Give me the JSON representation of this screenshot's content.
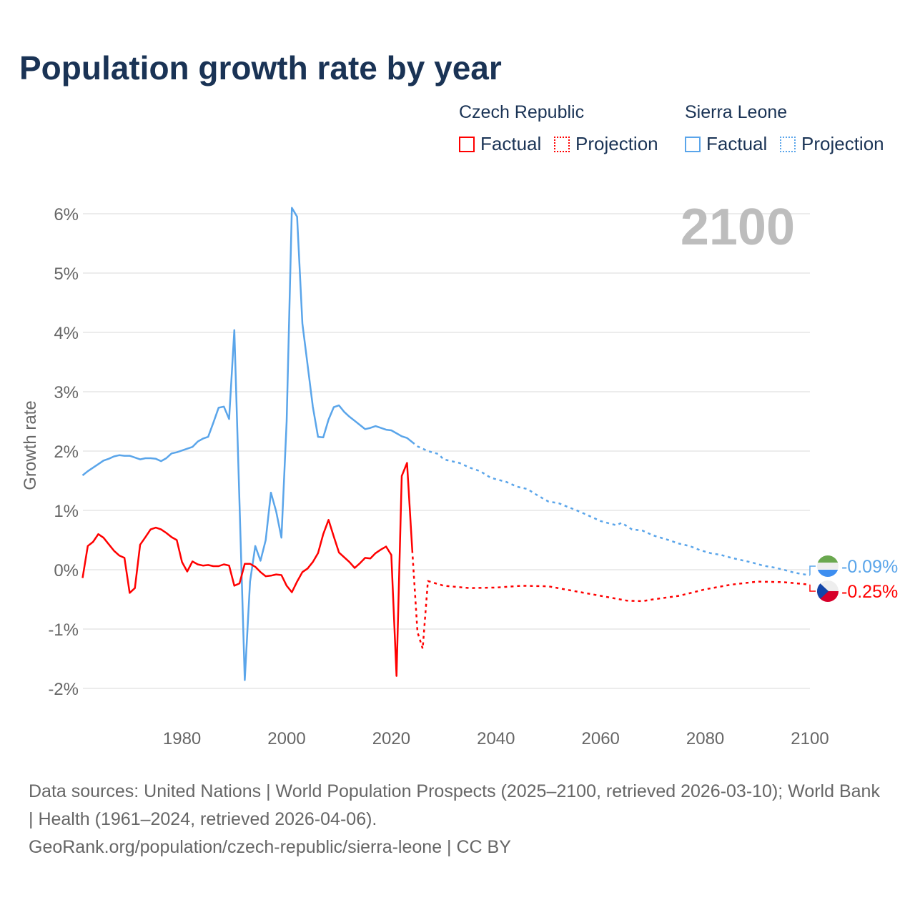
{
  "title": "Population growth rate by year",
  "legend": {
    "groups": [
      {
        "name": "Czech Republic",
        "factual": "Factual",
        "projection": "Projection",
        "color": "#ff0000"
      },
      {
        "name": "Sierra Leone",
        "factual": "Factual",
        "projection": "Projection",
        "color": "#5aa5ea"
      }
    ]
  },
  "year_label": "2100",
  "source": {
    "line1": "Data sources: United Nations | World Population Prospects (2025–2100, retrieved 2026-03-10); World Bank | Health (1961–2024, retrieved 2026-04-06).",
    "line2": "GeoRank.org/population/czech-republic/sierra-leone | CC BY"
  },
  "chart_data": {
    "type": "line",
    "title": "Population growth rate by year",
    "xlabel": "",
    "ylabel": "Growth rate",
    "xlim": [
      1961,
      2100
    ],
    "ylim": [
      -2.4,
      6.3
    ],
    "xticks": [
      1980,
      2000,
      2020,
      2040,
      2060,
      2080,
      2100
    ],
    "yticks": [
      -2,
      -1,
      0,
      1,
      2,
      3,
      4,
      5,
      6
    ],
    "ytick_labels": [
      "-2%",
      "-1%",
      "0%",
      "1%",
      "2%",
      "3%",
      "4%",
      "5%",
      "6%"
    ],
    "grid": true,
    "series": [
      {
        "name": "Sierra Leone",
        "kind": "factual",
        "color": "#5aa5ea",
        "start_year": 1961,
        "values": [
          1.59,
          1.66,
          1.72,
          1.78,
          1.84,
          1.87,
          1.91,
          1.93,
          1.92,
          1.92,
          1.89,
          1.86,
          1.88,
          1.88,
          1.87,
          1.83,
          1.88,
          1.96,
          1.98,
          2.01,
          2.04,
          2.07,
          2.16,
          2.21,
          2.24,
          2.48,
          2.73,
          2.75,
          2.54,
          4.04,
          1.1,
          -1.86,
          -0.2,
          0.4,
          0.15,
          0.5,
          1.3,
          0.98,
          0.54,
          2.5,
          6.1,
          5.95,
          4.15,
          3.45,
          2.75,
          2.24,
          2.23,
          2.53,
          2.74,
          2.77,
          2.66,
          2.58,
          2.51,
          2.44,
          2.37,
          2.39,
          2.42,
          2.39,
          2.36,
          2.35,
          2.3,
          2.25,
          2.22,
          2.15
        ]
      },
      {
        "name": "Sierra Leone",
        "kind": "projection",
        "color": "#5aa5ea",
        "x": [
          2024,
          2025,
          2027,
          2029,
          2030,
          2033,
          2035,
          2037,
          2039,
          2042,
          2044,
          2046,
          2048,
          2050,
          2052,
          2054,
          2056,
          2058,
          2060,
          2063,
          2064,
          2066,
          2068,
          2070,
          2073,
          2075,
          2077,
          2079,
          2081,
          2083,
          2085,
          2087,
          2089,
          2091,
          2093,
          2095,
          2097,
          2099,
          2100
        ],
        "values": [
          2.15,
          2.08,
          2.0,
          1.95,
          1.86,
          1.8,
          1.72,
          1.66,
          1.55,
          1.48,
          1.4,
          1.36,
          1.25,
          1.15,
          1.12,
          1.05,
          0.98,
          0.9,
          0.82,
          0.75,
          0.79,
          0.68,
          0.66,
          0.58,
          0.5,
          0.44,
          0.4,
          0.33,
          0.28,
          0.25,
          0.2,
          0.16,
          0.12,
          0.07,
          0.04,
          0.0,
          -0.05,
          -0.08,
          -0.09
        ]
      },
      {
        "name": "Czech Republic",
        "kind": "factual",
        "color": "#ff0000",
        "start_year": 1961,
        "values": [
          -0.14,
          0.4,
          0.47,
          0.6,
          0.54,
          0.43,
          0.32,
          0.24,
          0.2,
          -0.39,
          -0.31,
          0.42,
          0.55,
          0.68,
          0.71,
          0.68,
          0.62,
          0.55,
          0.5,
          0.13,
          -0.03,
          0.14,
          0.09,
          0.07,
          0.08,
          0.06,
          0.06,
          0.09,
          0.07,
          -0.27,
          -0.23,
          0.1,
          0.1,
          0.05,
          -0.04,
          -0.11,
          -0.1,
          -0.08,
          -0.09,
          -0.27,
          -0.38,
          -0.2,
          -0.04,
          0.02,
          0.13,
          0.28,
          0.6,
          0.84,
          0.56,
          0.29,
          0.21,
          0.13,
          0.03,
          0.11,
          0.2,
          0.19,
          0.28,
          0.34,
          0.39,
          0.25,
          -1.79,
          1.58,
          1.8,
          0.33
        ]
      },
      {
        "name": "Czech Republic",
        "kind": "projection",
        "color": "#ff0000",
        "x": [
          2024,
          2025,
          2026,
          2027,
          2030,
          2035,
          2040,
          2045,
          2050,
          2055,
          2060,
          2065,
          2068,
          2070,
          2075,
          2080,
          2085,
          2090,
          2095,
          2100
        ],
        "values": [
          0.33,
          -1.05,
          -1.33,
          -0.19,
          -0.27,
          -0.31,
          -0.3,
          -0.27,
          -0.28,
          -0.36,
          -0.44,
          -0.52,
          -0.53,
          -0.5,
          -0.44,
          -0.33,
          -0.25,
          -0.2,
          -0.21,
          -0.25
        ]
      }
    ],
    "end_labels": [
      {
        "country": "Sierra Leone",
        "text": "-0.09%",
        "color": "#5aa5ea"
      },
      {
        "country": "Czech Republic",
        "text": "-0.25%",
        "color": "#ff0000"
      }
    ]
  }
}
